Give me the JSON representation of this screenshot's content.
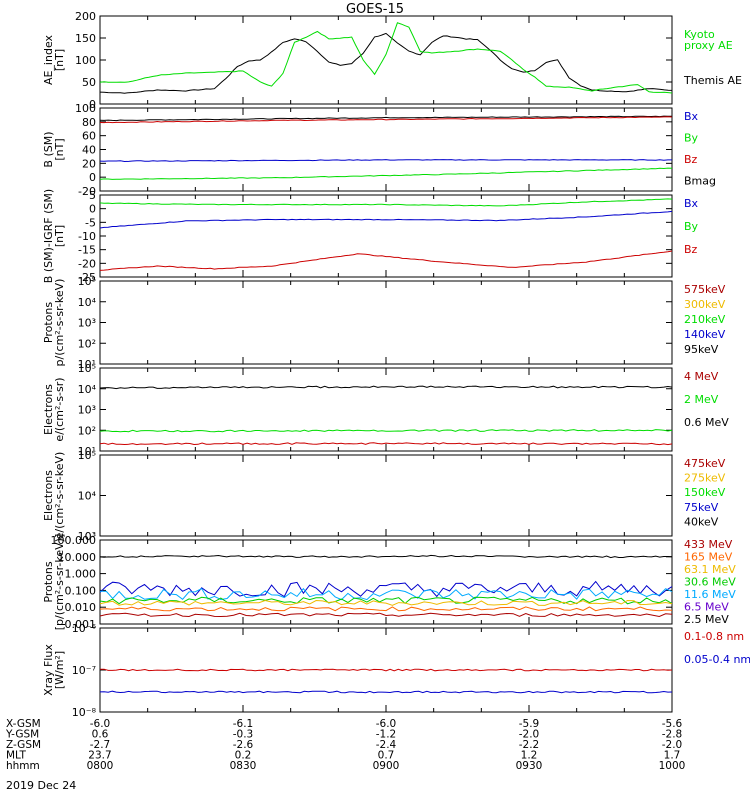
{
  "title": "GOES-15",
  "date": "2019 Dec 24",
  "chart_data": [
    {
      "id": "ae",
      "type": "line",
      "ylabel": [
        "AE_index",
        "[nT]"
      ],
      "ylim": [
        0,
        200
      ],
      "ticks": [
        0,
        50,
        100,
        150,
        200
      ],
      "legend": [
        {
          "text": "Kyoto",
          "color": "#00dd00"
        },
        {
          "text": "proxy AE",
          "color": "#00dd00"
        },
        {
          "text": "Themis AE",
          "color": "#000000"
        }
      ],
      "series": [
        {
          "color": "#000000",
          "points": [
            [
              0,
              27
            ],
            [
              0.05,
              25
            ],
            [
              0.1,
              32
            ],
            [
              0.15,
              30
            ],
            [
              0.2,
              35
            ],
            [
              0.22,
              58
            ],
            [
              0.24,
              85
            ],
            [
              0.26,
              98
            ],
            [
              0.28,
              100
            ],
            [
              0.3,
              118
            ],
            [
              0.32,
              140
            ],
            [
              0.34,
              148
            ],
            [
              0.36,
              142
            ],
            [
              0.38,
              120
            ],
            [
              0.4,
              95
            ],
            [
              0.42,
              88
            ],
            [
              0.44,
              92
            ],
            [
              0.46,
              115
            ],
            [
              0.48,
              152
            ],
            [
              0.5,
              160
            ],
            [
              0.52,
              138
            ],
            [
              0.54,
              120
            ],
            [
              0.56,
              112
            ],
            [
              0.58,
              140
            ],
            [
              0.6,
              155
            ],
            [
              0.62,
              152
            ],
            [
              0.64,
              148
            ],
            [
              0.66,
              146
            ],
            [
              0.68,
              125
            ],
            [
              0.7,
              100
            ],
            [
              0.72,
              80
            ],
            [
              0.74,
              72
            ],
            [
              0.76,
              76
            ],
            [
              0.78,
              95
            ],
            [
              0.8,
              100
            ],
            [
              0.82,
              60
            ],
            [
              0.84,
              42
            ],
            [
              0.86,
              32
            ],
            [
              0.88,
              30
            ],
            [
              0.92,
              28
            ],
            [
              0.96,
              35
            ],
            [
              1,
              31
            ]
          ]
        },
        {
          "color": "#00dd00",
          "points": [
            [
              0,
              50
            ],
            [
              0.05,
              50
            ],
            [
              0.1,
              65
            ],
            [
              0.15,
              70
            ],
            [
              0.2,
              72
            ],
            [
              0.25,
              75
            ],
            [
              0.28,
              50
            ],
            [
              0.3,
              40
            ],
            [
              0.32,
              70
            ],
            [
              0.34,
              140
            ],
            [
              0.36,
              152
            ],
            [
              0.38,
              165
            ],
            [
              0.4,
              148
            ],
            [
              0.42,
              150
            ],
            [
              0.44,
              152
            ],
            [
              0.46,
              100
            ],
            [
              0.48,
              68
            ],
            [
              0.5,
              112
            ],
            [
              0.52,
              185
            ],
            [
              0.54,
              175
            ],
            [
              0.56,
              120
            ],
            [
              0.58,
              116
            ],
            [
              0.62,
              120
            ],
            [
              0.66,
              125
            ],
            [
              0.7,
              120
            ],
            [
              0.72,
              100
            ],
            [
              0.74,
              78
            ],
            [
              0.76,
              62
            ],
            [
              0.78,
              40
            ],
            [
              0.82,
              38
            ],
            [
              0.86,
              30
            ],
            [
              0.9,
              38
            ],
            [
              0.94,
              44
            ],
            [
              0.96,
              28
            ],
            [
              1,
              25
            ]
          ]
        }
      ]
    },
    {
      "id": "bsm",
      "type": "line",
      "ylabel": [
        "B (SM)",
        "[nT]"
      ],
      "ylim": [
        -20,
        100
      ],
      "ticks": [
        -20,
        0,
        20,
        40,
        60,
        80,
        100
      ],
      "legend": [
        {
          "text": "Bx",
          "color": "#0000cc"
        },
        {
          "text": "By",
          "color": "#00dd00"
        },
        {
          "text": "Bz",
          "color": "#cc0000"
        },
        {
          "text": "Bmag",
          "color": "#000000"
        }
      ],
      "series": [
        {
          "color": "#000000",
          "points": [
            [
              0,
              82
            ],
            [
              0.5,
              86
            ],
            [
              1,
              88
            ]
          ]
        },
        {
          "color": "#cc0000",
          "points": [
            [
              0,
              79
            ],
            [
              0.3,
              82
            ],
            [
              0.6,
              84
            ],
            [
              1,
              87
            ]
          ]
        },
        {
          "color": "#0000cc",
          "points": [
            [
              0,
              23
            ],
            [
              0.5,
              25
            ],
            [
              1,
              25
            ]
          ]
        },
        {
          "color": "#00dd00",
          "points": [
            [
              0,
              -3
            ],
            [
              0.3,
              -1
            ],
            [
              0.6,
              4
            ],
            [
              1,
              13
            ]
          ]
        }
      ]
    },
    {
      "id": "bigrf",
      "type": "line",
      "ylabel": [
        "B (SM)-IGRF (SM)",
        "[nT]"
      ],
      "ylim": [
        -25,
        5
      ],
      "ticks": [
        -25,
        -20,
        -15,
        -10,
        -5,
        0,
        5
      ],
      "legend": [
        {
          "text": "Bx",
          "color": "#0000cc"
        },
        {
          "text": "By",
          "color": "#00dd00"
        },
        {
          "text": "Bz",
          "color": "#cc0000"
        }
      ],
      "series": [
        {
          "color": "#00dd00",
          "points": [
            [
              0,
              2
            ],
            [
              0.2,
              1.5
            ],
            [
              0.5,
              1.5
            ],
            [
              0.7,
              1
            ],
            [
              0.85,
              2.5
            ],
            [
              1,
              3.5
            ]
          ]
        },
        {
          "color": "#0000cc",
          "points": [
            [
              0,
              -7
            ],
            [
              0.15,
              -4.5
            ],
            [
              0.3,
              -4
            ],
            [
              0.5,
              -4
            ],
            [
              0.7,
              -4.3
            ],
            [
              0.85,
              -3
            ],
            [
              1,
              -1
            ]
          ]
        },
        {
          "color": "#cc0000",
          "points": [
            [
              0,
              -22.5
            ],
            [
              0.1,
              -21
            ],
            [
              0.2,
              -22
            ],
            [
              0.3,
              -21
            ],
            [
              0.4,
              -18
            ],
            [
              0.45,
              -16.5
            ],
            [
              0.5,
              -17.5
            ],
            [
              0.6,
              -19.5
            ],
            [
              0.72,
              -21.5
            ],
            [
              0.85,
              -19.5
            ],
            [
              1,
              -15.5
            ]
          ]
        }
      ]
    },
    {
      "id": "protons1",
      "type": "line",
      "log": true,
      "ylabel": [
        "Protons",
        "p/(cm²-s-sr-keV)"
      ],
      "ylim": [
        1,
        100000
      ],
      "ticks": [
        "10¹",
        "10²",
        "10³",
        "10⁴",
        "10⁵"
      ],
      "legend": [
        {
          "text": "575keV",
          "color": "#aa0000"
        },
        {
          "text": "300keV",
          "color": "#eebb00"
        },
        {
          "text": "210keV",
          "color": "#00dd00"
        },
        {
          "text": "140keV",
          "color": "#0000cc"
        },
        {
          "text": "95keV",
          "color": "#000000"
        }
      ],
      "series": []
    },
    {
      "id": "electrons1",
      "type": "line",
      "log": true,
      "ylabel": [
        "Electrons",
        "e/(cm²-s-sr)"
      ],
      "ylim": [
        10,
        100000
      ],
      "ticks": [
        "10¹",
        "10²",
        "10³",
        "10⁴",
        "10⁵"
      ],
      "legend": [
        {
          "text": "4 MeV",
          "color": "#aa0000"
        },
        {
          "text": "2 MeV",
          "color": "#00dd00"
        },
        {
          "text": "0.6 MeV",
          "color": "#000000"
        }
      ],
      "series": [
        {
          "color": "#000000",
          "points": [
            [
              0,
              11000
            ],
            [
              0.5,
              12500
            ],
            [
              1,
              12000
            ]
          ]
        },
        {
          "color": "#00dd00",
          "points": [
            [
              0,
              90
            ],
            [
              0.5,
              95
            ],
            [
              1,
              100
            ]
          ]
        },
        {
          "color": "#cc0000",
          "points": [
            [
              0,
              22
            ],
            [
              0.5,
              23
            ],
            [
              1,
              22
            ]
          ]
        }
      ]
    },
    {
      "id": "electrons2",
      "type": "line",
      "log": true,
      "ylabel": [
        "Electrons",
        "e/(cm²-s-sr-keV)"
      ],
      "ylim": [
        1000,
        100000
      ],
      "ticks": [
        "10³",
        "10⁴",
        "10⁵"
      ],
      "legend": [
        {
          "text": "475keV",
          "color": "#aa0000"
        },
        {
          "text": "275keV",
          "color": "#eebb00"
        },
        {
          "text": "150keV",
          "color": "#00dd00"
        },
        {
          "text": "75keV",
          "color": "#0000cc"
        },
        {
          "text": "40keV",
          "color": "#000000"
        }
      ],
      "series": []
    },
    {
      "id": "protons2",
      "type": "line",
      "log": true,
      "ylabel": [
        "Protons",
        "[p/(cm²-s-sr-keV)]"
      ],
      "ylim": [
        0.001,
        100
      ],
      "ticks": [
        "0.001",
        "0.010",
        "0.100",
        "1.000",
        "10.000",
        "100.000"
      ],
      "legend": [
        {
          "text": "433 MeV",
          "color": "#aa0000"
        },
        {
          "text": "165 MeV",
          "color": "#ff6600"
        },
        {
          "text": "63.1 MeV",
          "color": "#eebb00"
        },
        {
          "text": "30.6 MeV",
          "color": "#00cc00"
        },
        {
          "text": "11.6 MeV",
          "color": "#00aaff"
        },
        {
          "text": "6.5 MeV",
          "color": "#6600cc"
        },
        {
          "text": "2.5 MeV",
          "color": "#000000"
        }
      ],
      "series": [
        {
          "color": "#000000",
          "points": [
            [
              0,
              10
            ],
            [
              0.2,
              11
            ],
            [
              0.4,
              10
            ],
            [
              0.6,
              11
            ],
            [
              0.8,
              10
            ],
            [
              1,
              10
            ]
          ]
        },
        {
          "color": "#0000cc",
          "noise": 0.45,
          "points": [
            [
              0,
              0.12
            ],
            [
              1,
              0.12
            ]
          ]
        },
        {
          "color": "#00aaff",
          "noise": 0.35,
          "points": [
            [
              0,
              0.06
            ],
            [
              1,
              0.06
            ]
          ]
        },
        {
          "color": "#00cc00",
          "noise": 0.2,
          "points": [
            [
              0,
              0.025
            ],
            [
              1,
              0.025
            ]
          ]
        },
        {
          "color": "#eebb00",
          "noise": 0.15,
          "points": [
            [
              0,
              0.018
            ],
            [
              1,
              0.018
            ]
          ]
        },
        {
          "color": "#ff6600",
          "noise": 0.12,
          "points": [
            [
              0,
              0.008
            ],
            [
              1,
              0.008
            ]
          ]
        },
        {
          "color": "#aa0000",
          "noise": 0.1,
          "points": [
            [
              0,
              0.0035
            ],
            [
              1,
              0.0035
            ]
          ]
        }
      ]
    },
    {
      "id": "xray",
      "type": "line",
      "log": true,
      "ylabel": [
        "Xray Flux",
        "[W/m²]"
      ],
      "ylim": [
        1e-08,
        1e-06
      ],
      "ticks": [
        "10⁻⁸",
        "10⁻⁷",
        "10⁻⁶"
      ],
      "legend": [
        {
          "text": "0.1-0.8 nm",
          "color": "#cc0000"
        },
        {
          "text": "0.05-0.4 nm",
          "color": "#0000cc"
        }
      ],
      "series": [
        {
          "color": "#cc0000",
          "points": [
            [
              0,
              1e-07
            ],
            [
              1,
              1e-07
            ]
          ]
        },
        {
          "color": "#0000cc",
          "points": [
            [
              0,
              3e-08
            ],
            [
              1,
              3e-08
            ]
          ]
        }
      ]
    }
  ],
  "axis": {
    "rows": [
      {
        "name": "X-GSM",
        "values": [
          "-6.0",
          "-6.1",
          "-6.0",
          "-5.9",
          "-5.6"
        ]
      },
      {
        "name": "Y-GSM",
        "values": [
          "0.6",
          "-0.3",
          "-1.2",
          "-2.0",
          "-2.8"
        ]
      },
      {
        "name": "Z-GSM",
        "values": [
          "-2.7",
          "-2.6",
          "-2.4",
          "-2.2",
          "-2.0"
        ]
      },
      {
        "name": "MLT",
        "values": [
          "23.7",
          "0.2",
          "0.7",
          "1.2",
          "1.7"
        ]
      },
      {
        "name": "hhmm",
        "values": [
          "0800",
          "0830",
          "0900",
          "0930",
          "1000"
        ]
      }
    ]
  }
}
